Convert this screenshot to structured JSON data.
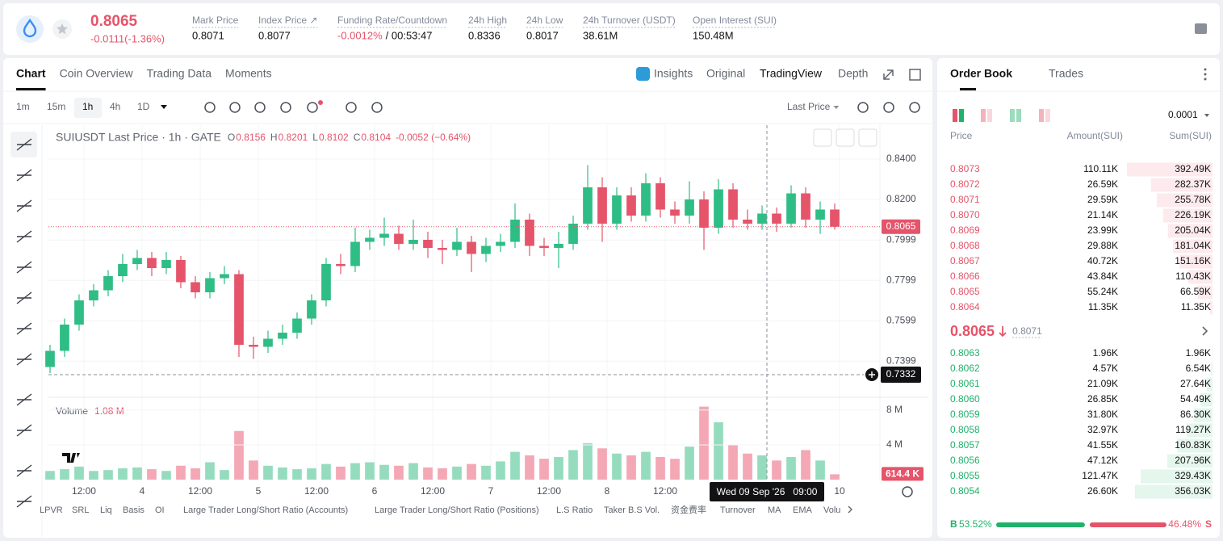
{
  "header": {
    "price": "0.8065",
    "change": "-0.0111(-1.36%)",
    "stats": [
      {
        "label": "Mark Price",
        "value": "0.8071"
      },
      {
        "label": "Index Price ↗",
        "value": "0.8077"
      },
      {
        "label": "Funding Rate/Countdown",
        "value": "-0.0012%",
        "extra": "/ 00:53:47",
        "color": "#e5546a"
      },
      {
        "label": "24h High",
        "value": "0.8336"
      },
      {
        "label": "24h Low",
        "value": "0.8017"
      },
      {
        "label": "24h Turnover (USDT)",
        "value": "38.61M"
      },
      {
        "label": "Open Interest (SUI)",
        "value": "150.48M"
      }
    ]
  },
  "chart_tabs": [
    "Chart",
    "Coin Overview",
    "Trading Data",
    "Moments"
  ],
  "view_tabs": [
    "Insights",
    "Original",
    "TradingView",
    "Depth"
  ],
  "intervals": [
    "1m",
    "15m",
    "1h",
    "4h",
    "1D"
  ],
  "price_source": "Last Price",
  "indicators": [
    "LPVR",
    "SRL",
    "Liq",
    "Basis",
    "OI",
    "Large Trader Long/Short Ratio (Accounts)",
    "Large Trader Long/Short Ratio (Positions)",
    "L.S Ratio",
    "Taker B.S Vol.",
    "资金费率",
    "Turnover",
    "MA",
    "EMA",
    "Volu"
  ],
  "chart_data": {
    "type": "candlestick",
    "title": "SUIUSDT Last Price · 1h · GATE",
    "ohlc": [
      {
        "key": "O",
        "value": "0.8156"
      },
      {
        "key": "H",
        "value": "0.8201"
      },
      {
        "key": "L",
        "value": "0.8102"
      },
      {
        "key": "C",
        "value": "0.8104"
      }
    ],
    "change": "-0.0052 (−0.64%)",
    "up_color": "#2ebd85",
    "down_color": "#e5546a",
    "volume_up_color": "#95dcbf",
    "volume_down_color": "#f4a7b4",
    "grid": true,
    "x": [
      -19,
      -16,
      -13,
      -10,
      -7,
      -4,
      -1,
      2,
      5,
      8,
      11,
      14,
      17,
      20,
      23,
      26,
      29,
      32,
      35,
      38,
      41,
      44,
      47,
      50,
      53,
      56,
      59,
      62,
      65,
      68,
      71,
      74,
      77,
      80,
      83,
      86,
      89,
      92,
      95,
      98,
      101,
      104,
      107,
      110,
      113,
      116,
      119,
      122,
      125,
      128,
      131,
      134,
      137,
      140,
      143
    ],
    "open": [
      0.737,
      0.745,
      0.758,
      0.77,
      0.775,
      0.782,
      0.788,
      0.791,
      0.786,
      0.79,
      0.779,
      0.774,
      0.781,
      0.783,
      0.748,
      0.747,
      0.751,
      0.754,
      0.761,
      0.77,
      0.788,
      0.787,
      0.799,
      0.801,
      0.803,
      0.798,
      0.8,
      0.796,
      0.795,
      0.799,
      0.793,
      0.797,
      0.799,
      0.81,
      0.797,
      0.796,
      0.798,
      0.808,
      0.826,
      0.808,
      0.822,
      0.812,
      0.828,
      0.815,
      0.812,
      0.82,
      0.806,
      0.825,
      0.81,
      0.808,
      0.813,
      0.808,
      0.823,
      0.81,
      0.815
    ],
    "high": [
      0.748,
      0.761,
      0.773,
      0.778,
      0.785,
      0.793,
      0.795,
      0.794,
      0.794,
      0.792,
      0.782,
      0.784,
      0.787,
      0.785,
      0.752,
      0.755,
      0.758,
      0.764,
      0.773,
      0.791,
      0.793,
      0.806,
      0.805,
      0.811,
      0.807,
      0.81,
      0.804,
      0.8,
      0.806,
      0.802,
      0.801,
      0.803,
      0.818,
      0.813,
      0.801,
      0.804,
      0.812,
      0.837,
      0.831,
      0.826,
      0.826,
      0.833,
      0.831,
      0.819,
      0.829,
      0.824,
      0.83,
      0.828,
      0.815,
      0.817,
      0.816,
      0.827,
      0.826,
      0.819,
      0.818
    ],
    "low": [
      0.734,
      0.742,
      0.755,
      0.767,
      0.772,
      0.779,
      0.785,
      0.782,
      0.783,
      0.776,
      0.771,
      0.771,
      0.778,
      0.742,
      0.741,
      0.744,
      0.748,
      0.751,
      0.758,
      0.767,
      0.783,
      0.784,
      0.795,
      0.797,
      0.795,
      0.795,
      0.791,
      0.788,
      0.792,
      0.784,
      0.789,
      0.794,
      0.796,
      0.792,
      0.792,
      0.786,
      0.795,
      0.805,
      0.799,
      0.805,
      0.809,
      0.809,
      0.811,
      0.808,
      0.808,
      0.795,
      0.803,
      0.806,
      0.805,
      0.805,
      0.804,
      0.806,
      0.806,
      0.803,
      0.805
    ],
    "close": [
      0.745,
      0.758,
      0.77,
      0.775,
      0.782,
      0.788,
      0.791,
      0.786,
      0.79,
      0.779,
      0.774,
      0.781,
      0.783,
      0.748,
      0.747,
      0.751,
      0.754,
      0.761,
      0.77,
      0.788,
      0.787,
      0.799,
      0.801,
      0.803,
      0.798,
      0.8,
      0.796,
      0.795,
      0.799,
      0.793,
      0.797,
      0.799,
      0.81,
      0.797,
      0.796,
      0.798,
      0.808,
      0.826,
      0.808,
      0.822,
      0.812,
      0.828,
      0.815,
      0.812,
      0.82,
      0.806,
      0.825,
      0.81,
      0.808,
      0.813,
      0.808,
      0.823,
      0.81,
      0.815,
      0.8065
    ],
    "volume": [
      1000000,
      1200000,
      1500000,
      1000000,
      1100000,
      1300000,
      1400000,
      1200000,
      1000000,
      1600000,
      1300000,
      2000000,
      1100000,
      5600000,
      2200000,
      1600000,
      1400000,
      1200000,
      1300000,
      1800000,
      1500000,
      1900000,
      2000000,
      1700000,
      1600000,
      1900000,
      1400000,
      1300000,
      1500000,
      1800000,
      1600000,
      2100000,
      3200000,
      2800000,
      2400000,
      2600000,
      3400000,
      4200000,
      3600000,
      3000000,
      2800000,
      3200000,
      2600000,
      2400000,
      3800000,
      8400000,
      6600000,
      4000000,
      3000000,
      2800000,
      2200000,
      2600000,
      3400000,
      2200000,
      614400
    ],
    "xlim": [
      -19.33,
      152.33
    ],
    "xticks": [
      {
        "value": -12,
        "label": "12:00"
      },
      {
        "value": 0,
        "label": "4"
      },
      {
        "value": 12,
        "label": "12:00"
      },
      {
        "value": 24,
        "label": "5"
      },
      {
        "value": 36,
        "label": "12:00"
      },
      {
        "value": 48,
        "label": "6"
      },
      {
        "value": 60,
        "label": "12:00"
      },
      {
        "value": 72,
        "label": "7"
      },
      {
        "value": 84,
        "label": "12:00"
      },
      {
        "value": 96,
        "label": "8"
      },
      {
        "value": 108,
        "label": "12:00"
      },
      {
        "value": 144,
        "label": "10"
      }
    ],
    "ylim": [
      0.7228,
      0.8548
    ],
    "yticks": [
      {
        "value": 0.84,
        "label": "0.8400"
      },
      {
        "value": 0.82,
        "label": "0.8200"
      },
      0.7999,
      0.7799,
      0.7599,
      0.7399
    ],
    "last_price": {
      "value": 0.8065,
      "label": "0.8065"
    },
    "crosshair": {
      "x": {
        "value": 129,
        "label": "Wed 09 Sep '26   09:00"
      },
      "y": {
        "value": 0.7332,
        "label": "0.7332"
      }
    },
    "volume_title": "Volume",
    "volume_current": "1.08 M",
    "volume_ylim": [
      0,
      9200000
    ],
    "volume_yticks": [
      {
        "value": 8000000,
        "label": "8 M"
      },
      {
        "value": 4000000,
        "label": "4 M"
      }
    ],
    "volume_last": {
      "value": 614400,
      "label": "614.4 K"
    }
  },
  "order_book": {
    "tabs": [
      "Order Book",
      "Trades"
    ],
    "precision": "0.0001",
    "columns": [
      "Price",
      "Amount(SUI)",
      "Sum(SUI)"
    ],
    "asks": [
      {
        "price": "0.8073",
        "amount": "110.11K",
        "sum": {
          "value": 392490,
          "label": "392.49K"
        }
      },
      {
        "price": "0.8072",
        "amount": "26.59K",
        "sum": {
          "value": 282370,
          "label": "282.37K"
        }
      },
      {
        "price": "0.8071",
        "amount": "29.59K",
        "sum": {
          "value": 255780,
          "label": "255.78K"
        }
      },
      {
        "price": "0.8070",
        "amount": "21.14K",
        "sum": {
          "value": 226190,
          "label": "226.19K"
        }
      },
      {
        "price": "0.8069",
        "amount": "23.99K",
        "sum": {
          "value": 205040,
          "label": "205.04K"
        }
      },
      {
        "price": "0.8068",
        "amount": "29.88K",
        "sum": {
          "value": 181040,
          "label": "181.04K"
        }
      },
      {
        "price": "0.8067",
        "amount": "40.72K",
        "sum": {
          "value": 151160,
          "label": "151.16K"
        }
      },
      {
        "price": "0.8066",
        "amount": "43.84K",
        "sum": {
          "value": 110430,
          "label": "110.43K"
        }
      },
      {
        "price": "0.8065",
        "amount": "55.24K",
        "sum": {
          "value": 66590,
          "label": "66.59K"
        }
      },
      {
        "price": "0.8064",
        "amount": "11.35K",
        "sum": {
          "value": 11350,
          "label": "11.35K"
        }
      }
    ],
    "mid_price": "0.8065",
    "mark_price": "0.8071",
    "bids": [
      {
        "price": "0.8063",
        "amount": "1.96K",
        "sum": {
          "value": 1960,
          "label": "1.96K"
        }
      },
      {
        "price": "0.8062",
        "amount": "4.57K",
        "sum": {
          "value": 6540,
          "label": "6.54K"
        }
      },
      {
        "price": "0.8061",
        "amount": "21.09K",
        "sum": {
          "value": 27640,
          "label": "27.64K"
        }
      },
      {
        "price": "0.8060",
        "amount": "26.85K",
        "sum": {
          "value": 54490,
          "label": "54.49K"
        }
      },
      {
        "price": "0.8059",
        "amount": "31.80K",
        "sum": {
          "value": 86300,
          "label": "86.30K"
        }
      },
      {
        "price": "0.8058",
        "amount": "32.97K",
        "sum": {
          "value": 119270,
          "label": "119.27K"
        }
      },
      {
        "price": "0.8057",
        "amount": "41.55K",
        "sum": {
          "value": 160830,
          "label": "160.83K"
        }
      },
      {
        "price": "0.8056",
        "amount": "47.12K",
        "sum": {
          "value": 207960,
          "label": "207.96K"
        }
      },
      {
        "price": "0.8055",
        "amount": "121.47K",
        "sum": {
          "value": 329430,
          "label": "329.43K"
        }
      },
      {
        "price": "0.8054",
        "amount": "26.60K",
        "sum": {
          "value": 356030,
          "label": "356.03K"
        }
      }
    ],
    "buy_label": "B",
    "buy_ratio": {
      "value": 53.52,
      "label": "53.52%"
    },
    "sell_ratio": {
      "value": 46.48,
      "label": "46.48%"
    },
    "sell_label": "S",
    "bid_color": "#20b26c",
    "ask_color": "#e5546a"
  }
}
